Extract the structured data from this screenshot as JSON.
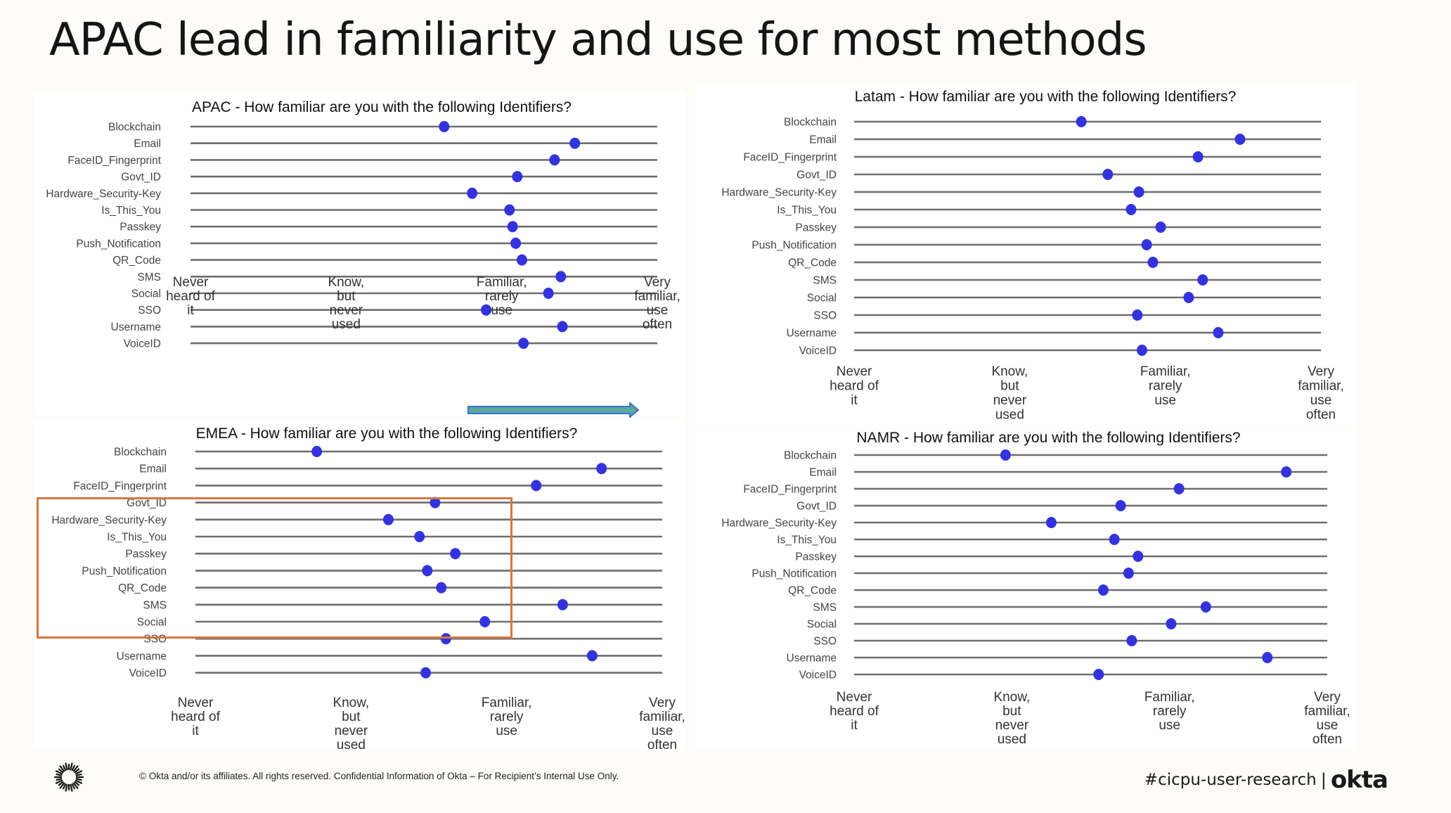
{
  "slide": {
    "title": "APAC lead in familiarity and use for most methods"
  },
  "footer": {
    "copyright": "© Okta and/or its affiliates. All rights reserved. Confidential Information of Okta – For Recipient’s Internal Use Only.",
    "hashtag": "#cicpu-user-research",
    "separator": "|",
    "brand": "okta",
    "logo_icon": "okta-sunburst-icon"
  },
  "colors": {
    "dot": "#3333dd",
    "line": "#6e6e6e",
    "highlight_box": "#d4773f",
    "arrow_fill": "#5aa89a",
    "arrow_stroke": "#3b6fd6"
  },
  "annotations": {
    "highlight_box": {
      "chart": "EMEA",
      "rows": [
        "Govt_ID",
        "Hardware_Security-Key",
        "Is_This_You",
        "Passkey",
        "Push_Notification",
        "QR_Code"
      ]
    },
    "arrow": {
      "chart": "APAC",
      "direction": "right",
      "from_label": "Familiar, rarely use",
      "to_label": "Very familiar, use often"
    }
  },
  "chart_data": [
    {
      "id": "apac",
      "type": "scatter",
      "subtype": "dot-plot",
      "title": "APAC - How familiar are you with the following Identifiers?",
      "xlabel": "",
      "ylabel": "",
      "xlim": [
        1,
        4
      ],
      "x_ticks": [
        {
          "value": 1,
          "label": [
            "Never",
            "heard of",
            "it"
          ]
        },
        {
          "value": 2,
          "label": [
            "Know,",
            "but",
            "never",
            "used"
          ]
        },
        {
          "value": 3,
          "label": [
            "Familiar,",
            "rarely",
            "use"
          ]
        },
        {
          "value": 4,
          "label": [
            "Very",
            "familiar,",
            "use",
            "often"
          ]
        }
      ],
      "categories": [
        "Blockchain",
        "Email",
        "FaceID_Fingerprint",
        "Govt_ID",
        "Hardware_Security-Key",
        "Is_This_You",
        "Passkey",
        "Push_Notification",
        "QR_Code",
        "SMS",
        "Social",
        "SSO",
        "Username",
        "VoiceID"
      ],
      "values": [
        2.63,
        3.47,
        3.34,
        3.1,
        2.81,
        3.05,
        3.07,
        3.09,
        3.13,
        3.38,
        3.3,
        2.9,
        3.39,
        3.14
      ],
      "grid": false,
      "legend": "none"
    },
    {
      "id": "latam",
      "type": "scatter",
      "subtype": "dot-plot",
      "title": "Latam - How familiar are you with the following Identifiers?",
      "xlabel": "",
      "ylabel": "",
      "xlim": [
        1,
        4
      ],
      "x_ticks": [
        {
          "value": 1,
          "label": [
            "Never",
            "heard of",
            "it"
          ]
        },
        {
          "value": 2,
          "label": [
            "Know,",
            "but",
            "never",
            "used"
          ]
        },
        {
          "value": 3,
          "label": [
            "Familiar,",
            "rarely",
            "use"
          ]
        },
        {
          "value": 4,
          "label": [
            "Very",
            "familiar,",
            "use",
            "often"
          ]
        }
      ],
      "categories": [
        "Blockchain",
        "Email",
        "FaceID_Fingerprint",
        "Govt_ID",
        "Hardware_Security-Key",
        "Is_This_You",
        "Passkey",
        "Push_Notification",
        "QR_Code",
        "SMS",
        "Social",
        "SSO",
        "Username",
        "VoiceID"
      ],
      "values": [
        2.46,
        3.48,
        3.21,
        2.63,
        2.83,
        2.78,
        2.97,
        2.88,
        2.92,
        3.24,
        3.15,
        2.82,
        3.34,
        2.85
      ],
      "grid": false,
      "legend": "none"
    },
    {
      "id": "emea",
      "type": "scatter",
      "subtype": "dot-plot",
      "title": "EMEA - How familiar are you with the following Identifiers?",
      "xlabel": "",
      "ylabel": "",
      "xlim": [
        1,
        4
      ],
      "x_ticks": [
        {
          "value": 1,
          "label": [
            "Never",
            "heard of",
            "it"
          ]
        },
        {
          "value": 2,
          "label": [
            "Know,",
            "but",
            "never",
            "used"
          ]
        },
        {
          "value": 3,
          "label": [
            "Familiar,",
            "rarely",
            "use"
          ]
        },
        {
          "value": 4,
          "label": [
            "Very",
            "familiar,",
            "use",
            "often"
          ]
        }
      ],
      "categories": [
        "Blockchain",
        "Email",
        "FaceID_Fingerprint",
        "Govt_ID",
        "Hardware_Security-Key",
        "Is_This_You",
        "Passkey",
        "Push_Notification",
        "QR_Code",
        "SMS",
        "Social",
        "SSO",
        "Username",
        "VoiceID"
      ],
      "values": [
        1.78,
        3.61,
        3.19,
        2.54,
        2.24,
        2.44,
        2.67,
        2.49,
        2.58,
        3.36,
        2.86,
        2.61,
        3.55,
        2.48
      ],
      "grid": false,
      "legend": "none"
    },
    {
      "id": "namr",
      "type": "scatter",
      "subtype": "dot-plot",
      "title": "NAMR - How familiar are you with the following Identifiers?",
      "xlabel": "",
      "ylabel": "",
      "xlim": [
        1,
        4
      ],
      "x_ticks": [
        {
          "value": 1,
          "label": [
            "Never",
            "heard of",
            "it"
          ]
        },
        {
          "value": 2,
          "label": [
            "Know,",
            "but",
            "never",
            "used"
          ]
        },
        {
          "value": 3,
          "label": [
            "Familiar,",
            "rarely",
            "use"
          ]
        },
        {
          "value": 4,
          "label": [
            "Very",
            "familiar,",
            "use",
            "often"
          ]
        }
      ],
      "categories": [
        "Blockchain",
        "Email",
        "FaceID_Fingerprint",
        "Govt_ID",
        "Hardware_Security-Key",
        "Is_This_You",
        "Passkey",
        "Push_Notification",
        "QR_Code",
        "SMS",
        "Social",
        "SSO",
        "Username",
        "VoiceID"
      ],
      "values": [
        1.96,
        3.74,
        3.06,
        2.69,
        2.25,
        2.65,
        2.8,
        2.74,
        2.58,
        3.23,
        3.01,
        2.76,
        3.62,
        2.55
      ],
      "grid": false,
      "legend": "none"
    }
  ]
}
